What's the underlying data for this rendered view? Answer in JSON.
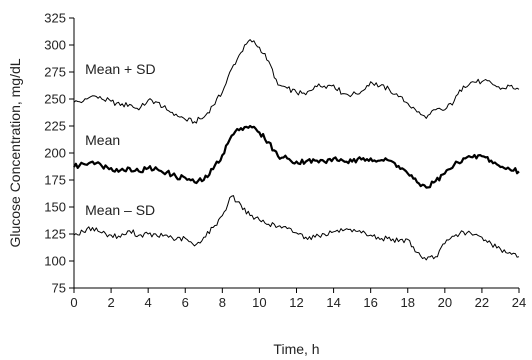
{
  "chart_data": {
    "type": "line",
    "xlabel": "Time, h",
    "ylabel": "Glucose Concentration, mg/dL",
    "xlim": [
      0,
      24
    ],
    "ylim": [
      75,
      325
    ],
    "xticks": [
      0,
      2,
      4,
      6,
      8,
      10,
      12,
      14,
      16,
      18,
      20,
      22,
      24
    ],
    "yticks": [
      75,
      100,
      125,
      150,
      175,
      200,
      225,
      250,
      275,
      300,
      325
    ],
    "grid": false,
    "legend": "none",
    "series": [
      {
        "name": "Mean + SD",
        "line_weight": "thin",
        "label_position": {
          "x": 0.6,
          "y": 278
        },
        "x": [
          0,
          0.5,
          1,
          1.5,
          2,
          2.5,
          3,
          3.5,
          4,
          4.5,
          5,
          5.5,
          6,
          6.5,
          7,
          7.5,
          8,
          8.5,
          9,
          9.5,
          10,
          10.5,
          11,
          11.5,
          12,
          12.5,
          13,
          13.5,
          14,
          14.5,
          15,
          15.5,
          16,
          16.5,
          17,
          17.5,
          18,
          18.5,
          19,
          19.5,
          20,
          20.5,
          21,
          21.5,
          22,
          22.5,
          23,
          23.5,
          24
        ],
        "y": [
          247,
          248,
          253,
          250,
          248,
          244,
          245,
          240,
          249,
          247,
          240,
          236,
          231,
          229,
          233,
          244,
          256,
          278,
          293,
          305,
          298,
          285,
          263,
          260,
          256,
          254,
          262,
          262,
          263,
          255,
          254,
          257,
          266,
          262,
          259,
          252,
          246,
          238,
          232,
          240,
          240,
          248,
          262,
          266,
          266,
          265,
          259,
          262,
          259
        ]
      },
      {
        "name": "Mean",
        "line_weight": "thick",
        "label_position": {
          "x": 0.6,
          "y": 212
        },
        "x": [
          0,
          0.5,
          1,
          1.5,
          2,
          2.5,
          3,
          3.5,
          4,
          4.5,
          5,
          5.5,
          6,
          6.5,
          7,
          7.5,
          8,
          8.5,
          9,
          9.5,
          10,
          10.5,
          11,
          11.5,
          12,
          12.5,
          13,
          13.5,
          14,
          14.5,
          15,
          15.5,
          16,
          16.5,
          17,
          17.5,
          18,
          18.5,
          19,
          19.5,
          20,
          20.5,
          21,
          21.5,
          22,
          22.5,
          23,
          23.5,
          24
        ],
        "y": [
          187,
          190,
          192,
          188,
          186,
          184,
          186,
          183,
          186,
          185,
          182,
          178,
          177,
          173,
          175,
          185,
          198,
          216,
          223,
          225,
          219,
          210,
          197,
          195,
          192,
          192,
          193,
          192,
          195,
          193,
          192,
          194,
          195,
          193,
          193,
          188,
          181,
          173,
          168,
          174,
          181,
          189,
          195,
          196,
          197,
          193,
          187,
          185,
          183
        ]
      },
      {
        "name": "Mean – SD",
        "line_weight": "thin",
        "label_position": {
          "x": 0.6,
          "y": 147
        },
        "x": [
          0,
          0.5,
          1,
          1.5,
          2,
          2.5,
          3,
          3.5,
          4,
          4.5,
          5,
          5.5,
          6,
          6.5,
          7,
          7.5,
          8,
          8.5,
          9,
          9.5,
          10,
          10.5,
          11,
          11.5,
          12,
          12.5,
          13,
          13.5,
          14,
          14.5,
          15,
          15.5,
          16,
          16.5,
          17,
          17.5,
          18,
          18.5,
          19,
          19.5,
          20,
          20.5,
          21,
          21.5,
          22,
          22.5,
          23,
          23.5,
          24
        ],
        "y": [
          124,
          127,
          131,
          126,
          124,
          122,
          128,
          124,
          125,
          123,
          124,
          120,
          121,
          114,
          122,
          131,
          142,
          160,
          152,
          142,
          138,
          134,
          132,
          130,
          126,
          122,
          122,
          125,
          127,
          128,
          127,
          126,
          124,
          120,
          122,
          118,
          120,
          108,
          101,
          104,
          116,
          123,
          127,
          124,
          122,
          116,
          111,
          108,
          104
        ]
      }
    ],
    "colors": {
      "lines": "#000000",
      "axis": "#000000",
      "text": "#222222",
      "background": "#ffffff"
    }
  }
}
